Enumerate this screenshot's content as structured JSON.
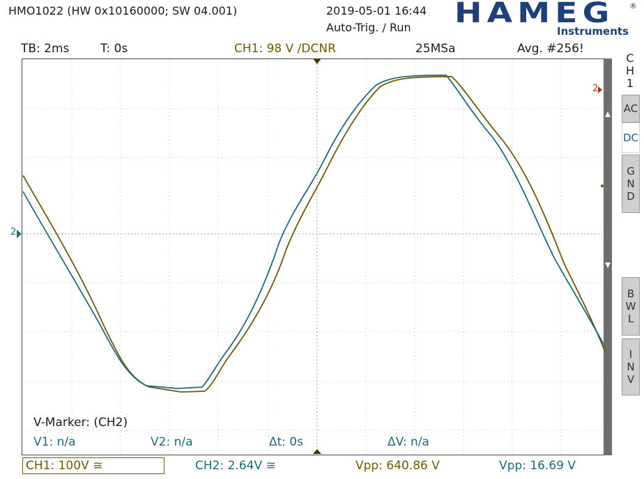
{
  "header": {
    "device": "HMO1022 (HW 0x10160000; SW 04.001)",
    "datetime": "2019-05-01 16:44",
    "trigger_mode": "Auto-Trig. / Run",
    "logo": "HAMEG",
    "logo_sub": "Instruments",
    "logo_reg": "®"
  },
  "status_bar": {
    "timebase": "TB: 2ms",
    "time_offset": "T: 0s",
    "ch1": "CH1: 98 V ∕DCNR",
    "sample_rate": "25MSa",
    "acquisition": "Avg. #256!"
  },
  "side_menu": {
    "channel": [
      "C",
      "H",
      "1"
    ],
    "ac": "AC",
    "dc": "DC",
    "gnd": [
      "G",
      "N",
      "D"
    ],
    "bwl": [
      "B",
      "W",
      "L"
    ],
    "inv": [
      "I",
      "N",
      "V"
    ]
  },
  "markers": {
    "title": "V-Marker: (CH2)",
    "v1": "V1: n/a",
    "v2": "V2: n/a",
    "dt": "Δt: 0s",
    "dv": "ΔV: n/a"
  },
  "bottom_bar": {
    "ch1": "CH1: 100V ≅",
    "ch2": "CH2: 2.64V ≅",
    "vpp1": "Vpp: 640.86 V",
    "vpp2": "Vpp: 16.69 V"
  },
  "colors": {
    "ch1": "#6b5a00",
    "ch2": "#1a6a7a",
    "grid": "#b8b8b8",
    "logo": "#1d3f7a"
  }
}
